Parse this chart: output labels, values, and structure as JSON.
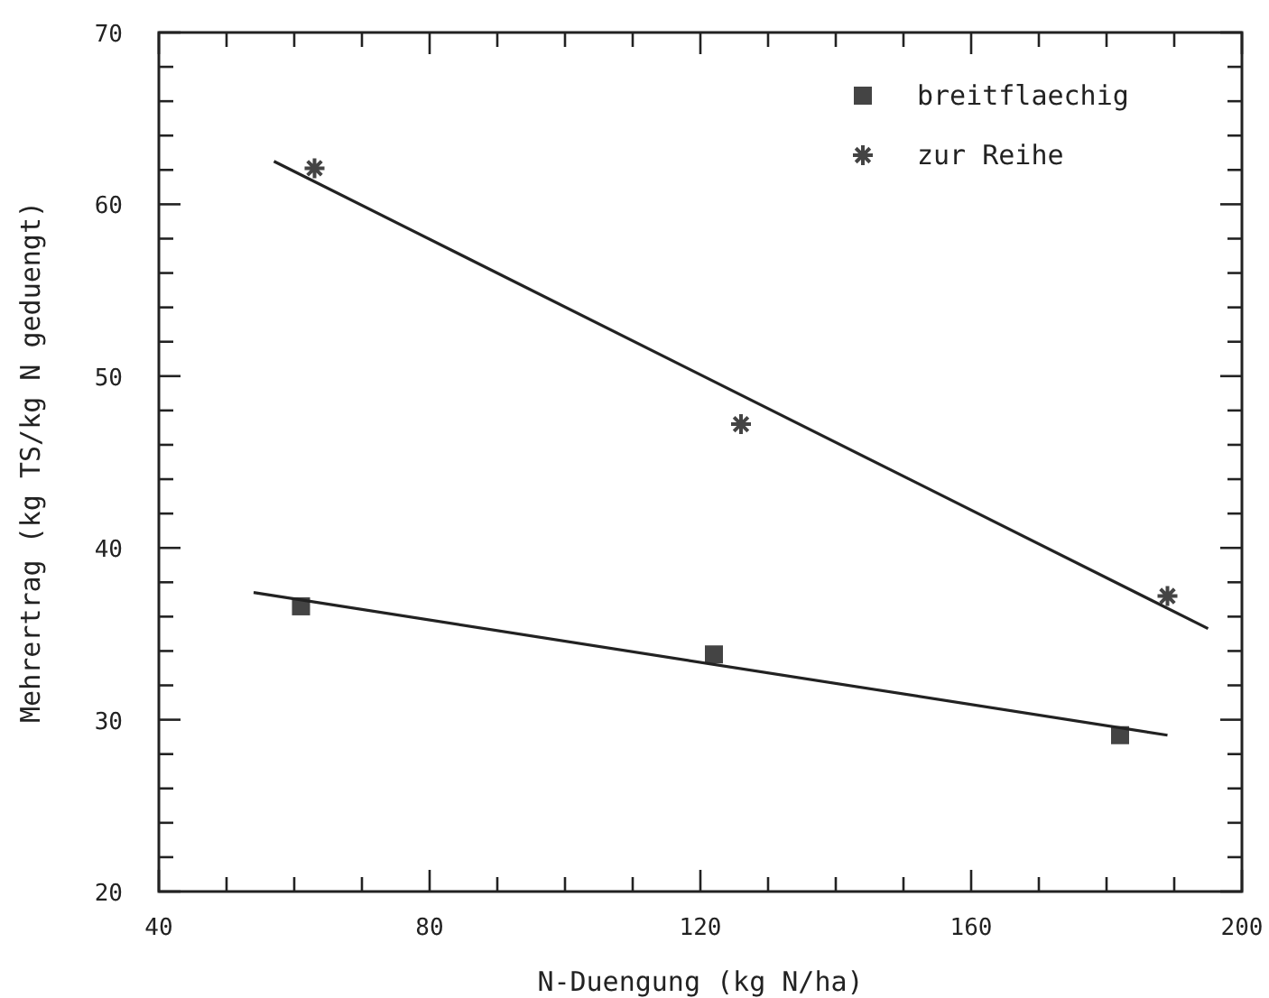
{
  "chart_data": {
    "type": "scatter",
    "xlabel": "N-Duengung  (kg N/ha)",
    "ylabel": "Mehrertrag  (kg TS/kg N geduengt)",
    "xlim": [
      40,
      200
    ],
    "ylim": [
      20,
      70
    ],
    "xticks": [
      40,
      {
        "value": 50,
        "label": null
      },
      {
        "value": 60,
        "label": null
      },
      {
        "value": 70,
        "label": null
      },
      80,
      {
        "value": 90,
        "label": null
      },
      {
        "value": 100,
        "label": null
      },
      {
        "value": 110,
        "label": null
      },
      120,
      {
        "value": 130,
        "label": null
      },
      {
        "value": 140,
        "label": null
      },
      {
        "value": 150,
        "label": null
      },
      160,
      {
        "value": 170,
        "label": null
      },
      {
        "value": 180,
        "label": null
      },
      {
        "value": 190,
        "label": null
      },
      200
    ],
    "yticks": [
      20,
      {
        "value": 22,
        "label": null
      },
      {
        "value": 24,
        "label": null
      },
      {
        "value": 26,
        "label": null
      },
      {
        "value": 28,
        "label": null
      },
      30,
      {
        "value": 32,
        "label": null
      },
      {
        "value": 34,
        "label": null
      },
      {
        "value": 36,
        "label": null
      },
      {
        "value": 38,
        "label": null
      },
      40,
      {
        "value": 42,
        "label": null
      },
      {
        "value": 44,
        "label": null
      },
      {
        "value": 46,
        "label": null
      },
      {
        "value": 48,
        "label": null
      },
      50,
      {
        "value": 52,
        "label": null
      },
      {
        "value": 54,
        "label": null
      },
      {
        "value": 56,
        "label": null
      },
      {
        "value": 58,
        "label": null
      },
      60,
      {
        "value": 62,
        "label": null
      },
      {
        "value": 64,
        "label": null
      },
      {
        "value": 66,
        "label": null
      },
      {
        "value": 68,
        "label": null
      },
      70
    ],
    "grid": false,
    "legend": "top right",
    "series": [
      {
        "name": "breitflaechig",
        "type": "scatter",
        "marker": "square",
        "color": "#444444",
        "x": [
          61,
          122,
          182
        ],
        "values": [
          36.6,
          33.8,
          29.1
        ]
      },
      {
        "name": "zur Reihe",
        "type": "scatter",
        "marker": "cross",
        "color": "#444444",
        "x": [
          63,
          126,
          189
        ],
        "values": [
          62.1,
          47.2,
          37.2
        ]
      },
      {
        "type": "line",
        "marker": "none",
        "color": "#222222",
        "x": [
          54,
          189
        ],
        "values": [
          37.4,
          29.1
        ]
      },
      {
        "type": "line",
        "marker": "none",
        "color": "#222222",
        "x": [
          57,
          195
        ],
        "values": [
          62.5,
          35.3
        ]
      }
    ]
  }
}
